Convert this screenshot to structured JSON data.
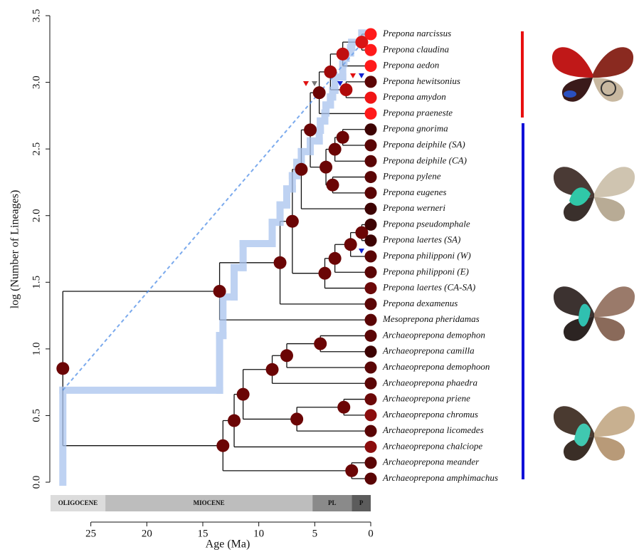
{
  "chart_data": {
    "type": "phylogeny",
    "xlabel": "Age (Ma)",
    "ylabel": "log (Number of Lineages)",
    "xlim": [
      28.6,
      0
    ],
    "xticks": [
      25,
      20,
      15,
      10,
      5,
      0
    ],
    "ylim": [
      0,
      3.5
    ],
    "yticks": [
      {
        "value": 0,
        "label": "0.0"
      },
      0.5,
      {
        "value": 1,
        "label": "1.0"
      },
      1.5,
      {
        "value": 2,
        "label": "2.0"
      },
      2.5,
      {
        "value": 3,
        "label": "3.0"
      },
      3.5
    ],
    "node_color": "#6b0505",
    "branch_color": "#111111",
    "ltt": {
      "color": "#a9c3ee",
      "x": [
        27.5,
        27.5,
        13.5,
        13.2,
        12.2,
        11.4,
        8.8,
        8.1,
        7.5,
        7.0,
        6.6,
        6.2,
        5.4,
        4.6,
        4.5,
        4.1,
        4.0,
        3.6,
        3.4,
        3.2,
        2.5,
        2.4,
        2.2,
        1.8,
        1.7,
        0.8,
        0
      ],
      "y": [
        0,
        0.69,
        1.1,
        1.39,
        1.61,
        1.79,
        1.95,
        2.08,
        2.2,
        2.3,
        2.4,
        2.48,
        2.56,
        2.64,
        2.71,
        2.77,
        2.83,
        2.89,
        2.94,
        3.04,
        3.14,
        3.18,
        3.22,
        3.26,
        3.3,
        3.37,
        3.37
      ]
    },
    "reference_line": {
      "color": "#4f8ee8",
      "x": [
        27.5,
        0
      ],
      "y": [
        0.69,
        3.37
      ]
    },
    "epochs": [
      {
        "name": "OLIGOCENE",
        "start": 28.6,
        "end": 23.7,
        "color": "#dcdcdc"
      },
      {
        "name": "MIOCENE",
        "start": 23.7,
        "end": 5.2,
        "color": "#bdbdbd"
      },
      {
        "name": "PL",
        "start": 5.2,
        "end": 1.7,
        "color": "#8a8a8a"
      },
      {
        "name": "P",
        "start": 1.7,
        "end": 0,
        "color": "#5c5c5c"
      }
    ],
    "tree": {
      "age": 27.5,
      "children": [
        {
          "age": 13.5,
          "children": [
            {
              "age": 8.1,
              "children": [
                {
                  "age": 7.0,
                  "children": [
                    {
                      "age": 6.2,
                      "children": [
                        {
                          "age": 5.4,
                          "children": [
                            {
                              "age": 4.6,
                              "children": [
                                {
                                  "age": 3.6,
                                  "color": "#a00a0a",
                                  "children": [
                                    {
                                      "age": 2.5,
                                      "color": "#c01010",
                                      "children": [
                                        {
                                          "age": 0.8,
                                          "color": "#d81515",
                                          "children": [
                                            {
                                              "name": "Prepona narcissus",
                                              "color": "#ff1a1a"
                                            },
                                            {
                                              "name": "Prepona claudina",
                                              "color": "#ff1a1a"
                                            }
                                          ]
                                        },
                                        {
                                          "name": "Prepona aedon",
                                          "color": "#ff1a1a"
                                        }
                                      ]
                                    },
                                    {
                                      "age": 2.2,
                                      "color": "#b00a0a",
                                      "children": [
                                        {
                                          "name": "Prepona hewitsonius",
                                          "color": "#5c0505"
                                        },
                                        {
                                          "name": "Prepona amydon",
                                          "color": "#f01515"
                                        }
                                      ]
                                    }
                                  ]
                                },
                                {
                                  "name": "Prepona praeneste",
                                  "color": "#ff1a1a"
                                }
                              ]
                            },
                            {
                              "age": 4.0,
                              "children": [
                                {
                                  "age": 3.2,
                                  "children": [
                                    {
                                      "age": 2.5,
                                      "children": [
                                        {
                                          "name": "Prepona gnorima",
                                          "color": "#3d0303"
                                        },
                                        {
                                          "name": "Prepona deiphile (SA)",
                                          "color": "#5a0505"
                                        }
                                      ]
                                    },
                                    {
                                      "name": "Prepona deiphile (CA)",
                                      "color": "#5a0505"
                                    }
                                  ]
                                },
                                {
                                  "age": 3.4,
                                  "children": [
                                    {
                                      "name": "Prepona pylene",
                                      "color": "#5a0505"
                                    },
                                    {
                                      "name": "Prepona eugenes",
                                      "color": "#5a0505"
                                    }
                                  ]
                                }
                              ]
                            }
                          ]
                        },
                        {
                          "name": "Prepona werneri",
                          "color": "#3d0303"
                        }
                      ]
                    },
                    {
                      "age": 4.1,
                      "children": [
                        {
                          "age": 3.2,
                          "children": [
                            {
                              "age": 1.8,
                              "children": [
                                {
                                  "age": 0.8,
                                  "children": [
                                    {
                                      "name": "Prepona pseudomphale",
                                      "color": "#3d0303"
                                    },
                                    {
                                      "name": "Prepona laertes (SA)",
                                      "color": "#3d0303"
                                    }
                                  ]
                                },
                                {
                                  "name": "Prepona philipponi (W)",
                                  "color": "#5a0505"
                                }
                              ]
                            },
                            {
                              "name": "Prepona philipponi (E)",
                              "color": "#5a0505"
                            }
                          ]
                        },
                        {
                          "name": "Prepona laertes (CA-SA)",
                          "color": "#6b0808"
                        }
                      ]
                    }
                  ]
                },
                {
                  "name": "Prepona dexamenus",
                  "color": "#5a0505"
                }
              ]
            },
            {
              "name": "Mesoprepona pheridamas",
              "color": "#5a0505"
            }
          ]
        },
        {
          "age": 13.2,
          "children": [
            {
              "age": 12.2,
              "children": [
                {
                  "age": 11.4,
                  "children": [
                    {
                      "age": 8.8,
                      "children": [
                        {
                          "age": 7.5,
                          "children": [
                            {
                              "age": 4.5,
                              "children": [
                                {
                                  "name": "Archaeoprepona demophon",
                                  "color": "#5a0505"
                                },
                                {
                                  "name": "Archaeoprepona camilla",
                                  "color": "#3d0303"
                                }
                              ]
                            },
                            {
                              "name": "Archaeoprepona demophoon",
                              "color": "#5a0505"
                            }
                          ]
                        },
                        {
                          "name": "Archaeoprepona phaedra",
                          "color": "#5a0505"
                        }
                      ]
                    },
                    {
                      "age": 6.6,
                      "children": [
                        {
                          "age": 2.4,
                          "children": [
                            {
                              "name": "Archaeoprepona priene",
                              "color": "#6b0808"
                            },
                            {
                              "name": "Archaeoprepona chromus",
                              "color": "#8b0d0d"
                            }
                          ]
                        },
                        {
                          "name": "Archaeoprepona licomedes",
                          "color": "#5a0505"
                        }
                      ]
                    }
                  ]
                },
                {
                  "name": "Archaeoprepona chalciope",
                  "color": "#8b0d0d"
                }
              ]
            },
            {
              "age": 1.7,
              "children": [
                {
                  "name": "Archaeoprepona meander",
                  "color": "#5a0505"
                },
                {
                  "name": "Archaeoprepona amphimachus",
                  "color": "#5a0505"
                }
              ]
            }
          ]
        }
      ]
    }
  }
}
